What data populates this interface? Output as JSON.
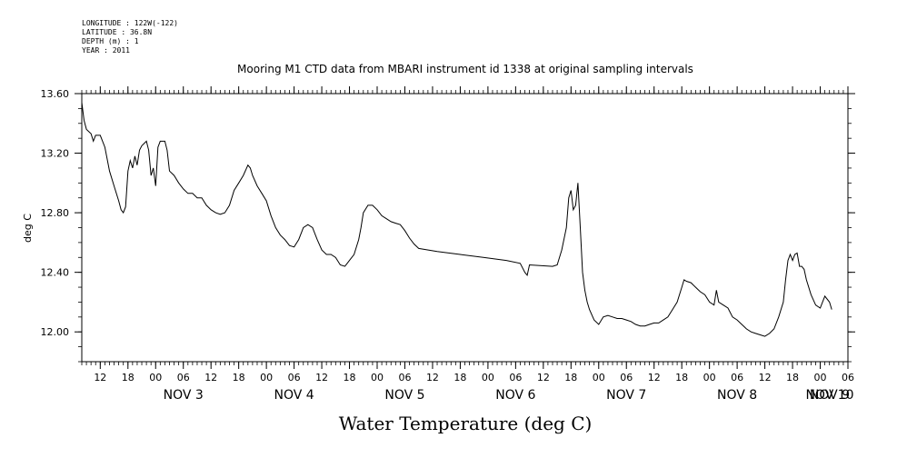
{
  "header": {
    "longitude": "LONGITUDE : 122W(-122)",
    "latitude": "LATITUDE : 36.8N",
    "depth": "DEPTH (m) : 1",
    "year": "YEAR : 2011"
  },
  "chart_data": {
    "type": "line",
    "title": "Mooring M1 CTD data from MBARI instrument id 1338 at original sampling intervals",
    "xlabel": "Water Temperature (deg C)",
    "ylabel": "deg C",
    "ylim": [
      11.8,
      13.6
    ],
    "yticks": [
      "12.00",
      "12.40",
      "12.80",
      "13.20",
      "13.60"
    ],
    "xlim_hours": [
      8,
      174
    ],
    "hour_ticks": [
      "12",
      "18",
      "00",
      "06",
      "12",
      "18",
      "00",
      "06",
      "12",
      "18",
      "00",
      "06",
      "12",
      "18",
      "00",
      "06",
      "12",
      "18",
      "00",
      "06",
      "12",
      "18",
      "00",
      "06",
      "12",
      "18",
      "00",
      "06"
    ],
    "date_ticks": [
      "NOV 3",
      "NOV 4",
      "NOV 5",
      "NOV 6",
      "NOV 7",
      "NOV 8",
      "NOV 9",
      "NOV 10"
    ],
    "series": [
      {
        "color": "#000000",
        "points": [
          [
            8.0,
            13.54
          ],
          [
            8.5,
            13.42
          ],
          [
            9,
            13.36
          ],
          [
            10,
            13.33
          ],
          [
            10.5,
            13.28
          ],
          [
            11,
            13.32
          ],
          [
            12,
            13.32
          ],
          [
            13,
            13.24
          ],
          [
            14,
            13.08
          ],
          [
            15,
            12.98
          ],
          [
            16,
            12.88
          ],
          [
            16.5,
            12.82
          ],
          [
            17,
            12.8
          ],
          [
            17.5,
            12.84
          ],
          [
            18,
            13.08
          ],
          [
            18.5,
            13.15
          ],
          [
            19,
            13.1
          ],
          [
            19.5,
            13.18
          ],
          [
            20,
            13.12
          ],
          [
            20.5,
            13.22
          ],
          [
            21,
            13.25
          ],
          [
            22,
            13.28
          ],
          [
            22.5,
            13.22
          ],
          [
            23,
            13.05
          ],
          [
            23.5,
            13.1
          ],
          [
            24,
            12.98
          ],
          [
            24.5,
            13.24
          ],
          [
            25,
            13.28
          ],
          [
            26,
            13.28
          ],
          [
            26.5,
            13.22
          ],
          [
            27,
            13.08
          ],
          [
            28,
            13.05
          ],
          [
            29,
            13.0
          ],
          [
            30,
            12.96
          ],
          [
            31,
            12.93
          ],
          [
            32,
            12.93
          ],
          [
            33,
            12.9
          ],
          [
            34,
            12.9
          ],
          [
            35,
            12.85
          ],
          [
            36,
            12.82
          ],
          [
            37,
            12.8
          ],
          [
            38,
            12.79
          ],
          [
            39,
            12.8
          ],
          [
            40,
            12.85
          ],
          [
            41,
            12.95
          ],
          [
            42,
            13.0
          ],
          [
            43,
            13.05
          ],
          [
            44,
            13.12
          ],
          [
            44.5,
            13.1
          ],
          [
            45,
            13.05
          ],
          [
            46,
            12.98
          ],
          [
            47,
            12.93
          ],
          [
            48,
            12.88
          ],
          [
            49,
            12.78
          ],
          [
            50,
            12.7
          ],
          [
            51,
            12.65
          ],
          [
            52,
            12.62
          ],
          [
            53,
            12.58
          ],
          [
            54,
            12.57
          ],
          [
            55,
            12.62
          ],
          [
            56,
            12.7
          ],
          [
            57,
            12.72
          ],
          [
            58,
            12.7
          ],
          [
            59,
            12.62
          ],
          [
            60,
            12.55
          ],
          [
            61,
            12.52
          ],
          [
            62,
            12.52
          ],
          [
            63,
            12.5
          ],
          [
            64,
            12.45
          ],
          [
            65,
            12.44
          ],
          [
            66,
            12.48
          ],
          [
            67,
            12.52
          ],
          [
            68,
            12.62
          ],
          [
            68.5,
            12.7
          ],
          [
            69,
            12.8
          ],
          [
            70,
            12.85
          ],
          [
            71,
            12.85
          ],
          [
            72,
            12.82
          ],
          [
            73,
            12.78
          ],
          [
            74,
            12.76
          ],
          [
            75,
            12.74
          ],
          [
            76,
            12.73
          ],
          [
            77,
            12.72
          ],
          [
            78,
            12.68
          ],
          [
            79,
            12.63
          ],
          [
            80,
            12.59
          ],
          [
            81,
            12.56
          ],
          [
            85,
            12.54
          ],
          [
            90,
            12.52
          ],
          [
            95,
            12.5
          ],
          [
            100,
            12.48
          ],
          [
            103,
            12.46
          ],
          [
            104,
            12.4
          ],
          [
            104.5,
            12.38
          ],
          [
            105,
            12.45
          ],
          [
            110,
            12.44
          ],
          [
            111,
            12.45
          ],
          [
            112,
            12.55
          ],
          [
            113,
            12.7
          ],
          [
            113.5,
            12.9
          ],
          [
            114,
            12.95
          ],
          [
            114.5,
            12.82
          ],
          [
            115,
            12.85
          ],
          [
            115.5,
            13.0
          ],
          [
            116,
            12.7
          ],
          [
            116.5,
            12.4
          ],
          [
            117,
            12.28
          ],
          [
            117.5,
            12.2
          ],
          [
            118,
            12.15
          ],
          [
            119,
            12.08
          ],
          [
            120,
            12.05
          ],
          [
            121,
            12.1
          ],
          [
            122,
            12.11
          ],
          [
            123,
            12.1
          ],
          [
            124,
            12.09
          ],
          [
            125,
            12.09
          ],
          [
            126,
            12.08
          ],
          [
            127,
            12.07
          ],
          [
            128,
            12.05
          ],
          [
            129,
            12.04
          ],
          [
            130,
            12.04
          ],
          [
            131,
            12.05
          ],
          [
            132,
            12.06
          ],
          [
            133,
            12.06
          ],
          [
            134,
            12.08
          ],
          [
            135,
            12.1
          ],
          [
            136,
            12.15
          ],
          [
            137,
            12.2
          ],
          [
            138,
            12.3
          ],
          [
            138.5,
            12.35
          ],
          [
            139,
            12.34
          ],
          [
            140,
            12.33
          ],
          [
            141,
            12.3
          ],
          [
            142,
            12.27
          ],
          [
            143,
            12.25
          ],
          [
            144,
            12.2
          ],
          [
            145,
            12.18
          ],
          [
            145.5,
            12.28
          ],
          [
            146,
            12.2
          ],
          [
            147,
            12.18
          ],
          [
            148,
            12.16
          ],
          [
            149,
            12.1
          ],
          [
            150,
            12.08
          ],
          [
            151,
            12.05
          ],
          [
            152,
            12.02
          ],
          [
            153,
            12.0
          ],
          [
            154,
            11.99
          ],
          [
            155,
            11.98
          ],
          [
            156,
            11.97
          ],
          [
            157,
            11.99
          ],
          [
            158,
            12.02
          ],
          [
            159,
            12.1
          ],
          [
            160,
            12.2
          ],
          [
            160.5,
            12.35
          ],
          [
            161,
            12.48
          ],
          [
            161.5,
            12.52
          ],
          [
            162,
            12.48
          ],
          [
            162.5,
            12.52
          ],
          [
            163,
            12.53
          ],
          [
            163.5,
            12.44
          ],
          [
            164,
            12.44
          ],
          [
            164.5,
            12.42
          ],
          [
            165,
            12.35
          ],
          [
            166,
            12.25
          ],
          [
            167,
            12.18
          ],
          [
            168,
            12.16
          ],
          [
            169,
            12.24
          ],
          [
            170,
            12.2
          ],
          [
            170.5,
            12.15
          ]
        ]
      }
    ]
  }
}
